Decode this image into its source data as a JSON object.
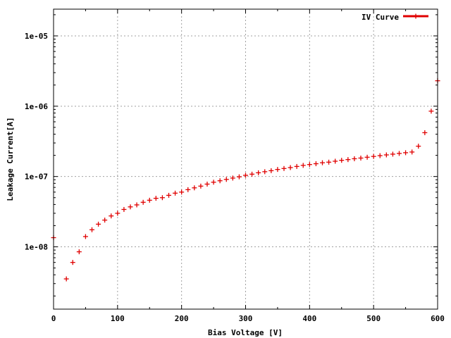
{
  "chart_data": {
    "type": "scatter",
    "title": "",
    "xlabel": "Bias Voltage [V]",
    "ylabel": "Leakage Current[A]",
    "xlim": [
      0,
      600
    ],
    "ylim": [
      1.3e-09,
      2.4e-05
    ],
    "yscale": "log",
    "grid": true,
    "legend_position": "top-right",
    "x_ticks": [
      0,
      100,
      200,
      300,
      400,
      500,
      600
    ],
    "x_tick_labels": [
      "0",
      "100",
      "200",
      "300",
      "400",
      "500",
      "600"
    ],
    "y_ticks": [
      1e-08,
      1e-07,
      1e-06,
      1e-05
    ],
    "y_tick_labels": [
      "1e-08",
      "1e-07",
      "1e-06",
      "1e-05"
    ],
    "series": [
      {
        "name": "IV Curve",
        "color": "#e00000",
        "marker": "plus",
        "x": [
          0,
          20,
          30,
          40,
          50,
          60,
          70,
          80,
          90,
          100,
          110,
          120,
          130,
          140,
          150,
          160,
          170,
          180,
          190,
          200,
          210,
          220,
          230,
          240,
          250,
          260,
          270,
          280,
          290,
          300,
          310,
          320,
          330,
          340,
          350,
          360,
          370,
          380,
          390,
          400,
          410,
          420,
          430,
          440,
          450,
          460,
          470,
          480,
          490,
          500,
          510,
          520,
          530,
          540,
          550,
          560,
          570,
          580,
          590,
          600
        ],
        "y": [
          1.35e-08,
          3.5e-09,
          6e-09,
          8.5e-09,
          1.4e-08,
          1.75e-08,
          2.1e-08,
          2.4e-08,
          2.75e-08,
          3e-08,
          3.4e-08,
          3.7e-08,
          3.95e-08,
          4.3e-08,
          4.6e-08,
          4.9e-08,
          5e-08,
          5.4e-08,
          5.8e-08,
          6e-08,
          6.5e-08,
          6.9e-08,
          7.3e-08,
          7.8e-08,
          8.3e-08,
          8.7e-08,
          9.1e-08,
          9.5e-08,
          9.9e-08,
          1.04e-07,
          1.08e-07,
          1.13e-07,
          1.17e-07,
          1.21e-07,
          1.26e-07,
          1.3e-07,
          1.34e-07,
          1.39e-07,
          1.44e-07,
          1.48e-07,
          1.52e-07,
          1.57e-07,
          1.6e-07,
          1.65e-07,
          1.7e-07,
          1.74e-07,
          1.79e-07,
          1.83e-07,
          1.88e-07,
          1.93e-07,
          1.98e-07,
          2.03e-07,
          2.08e-07,
          2.13e-07,
          2.18e-07,
          2.23e-07,
          2.7e-07,
          4.2e-07,
          8.5e-07,
          2.3e-06
        ]
      }
    ]
  }
}
